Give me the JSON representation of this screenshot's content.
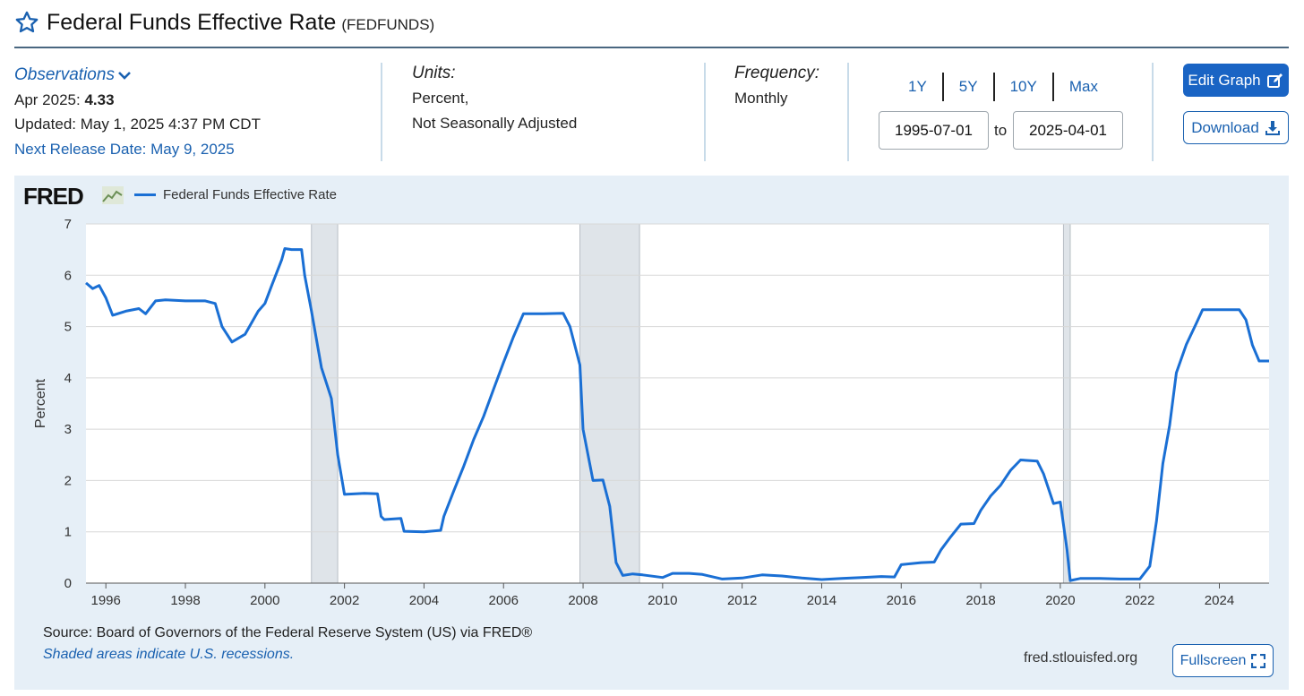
{
  "header": {
    "title": "Federal Funds Effective Rate",
    "series_id": "(FEDFUNDS)"
  },
  "observations": {
    "label": "Observations",
    "date_label": "Apr 2025:",
    "value": "4.33",
    "updated": "Updated: May 1, 2025 4:37 PM CDT",
    "next_release": "Next Release Date: May 9, 2025"
  },
  "units": {
    "label": "Units:",
    "line1": "Percent,",
    "line2": "Not Seasonally Adjusted"
  },
  "frequency": {
    "label": "Frequency:",
    "value": "Monthly"
  },
  "ranges": [
    "1Y",
    "5Y",
    "10Y",
    "Max"
  ],
  "dates": {
    "start": "1995-07-01",
    "to_label": "to",
    "end": "2025-04-01"
  },
  "buttons": {
    "edit": "Edit Graph",
    "download": "Download",
    "fullscreen": "Fullscreen"
  },
  "footer": {
    "source": "Source: Board of Governors of the Federal Reserve System (US) via FRED®",
    "shade_note": "Shaded areas indicate U.S. recessions.",
    "url": "fred.stlouisfed.org"
  },
  "colors": {
    "accent": "#1a64c4",
    "line": "#1a6fd4",
    "panel": "#e6eff7",
    "recession": "#dfe4e9"
  },
  "chart_data": {
    "type": "line",
    "title": "",
    "logo": "FRED",
    "ylabel": "Percent",
    "xlabel": "",
    "ylim": [
      0,
      7
    ],
    "xlim": [
      1995.5,
      2025.25
    ],
    "yticks": [
      0,
      1,
      2,
      3,
      4,
      5,
      6,
      7
    ],
    "xticks": [
      1996,
      1998,
      2000,
      2002,
      2004,
      2006,
      2008,
      2010,
      2012,
      2014,
      2016,
      2018,
      2020,
      2022,
      2024
    ],
    "grid": true,
    "recessions": [
      [
        2001.17,
        2001.83
      ],
      [
        2007.92,
        2009.42
      ],
      [
        2020.08,
        2020.25
      ]
    ],
    "series": [
      {
        "name": "Federal Funds Effective Rate",
        "points": [
          [
            1995.5,
            5.85
          ],
          [
            1995.67,
            5.74
          ],
          [
            1995.83,
            5.8
          ],
          [
            1996.0,
            5.56
          ],
          [
            1996.17,
            5.22
          ],
          [
            1996.5,
            5.3
          ],
          [
            1996.83,
            5.35
          ],
          [
            1997.0,
            5.25
          ],
          [
            1997.25,
            5.5
          ],
          [
            1997.5,
            5.52
          ],
          [
            1998.0,
            5.5
          ],
          [
            1998.5,
            5.5
          ],
          [
            1998.75,
            5.45
          ],
          [
            1998.92,
            5.0
          ],
          [
            1999.17,
            4.7
          ],
          [
            1999.5,
            4.85
          ],
          [
            1999.83,
            5.3
          ],
          [
            2000.0,
            5.45
          ],
          [
            2000.17,
            5.8
          ],
          [
            2000.42,
            6.3
          ],
          [
            2000.5,
            6.52
          ],
          [
            2000.67,
            6.5
          ],
          [
            2000.92,
            6.5
          ],
          [
            2001.0,
            6.0
          ],
          [
            2001.17,
            5.3
          ],
          [
            2001.42,
            4.2
          ],
          [
            2001.67,
            3.6
          ],
          [
            2001.83,
            2.5
          ],
          [
            2002.0,
            1.73
          ],
          [
            2002.5,
            1.75
          ],
          [
            2002.83,
            1.74
          ],
          [
            2002.92,
            1.3
          ],
          [
            2003.0,
            1.24
          ],
          [
            2003.42,
            1.26
          ],
          [
            2003.5,
            1.01
          ],
          [
            2004.0,
            1.0
          ],
          [
            2004.42,
            1.03
          ],
          [
            2004.5,
            1.3
          ],
          [
            2004.75,
            1.8
          ],
          [
            2005.0,
            2.28
          ],
          [
            2005.25,
            2.8
          ],
          [
            2005.5,
            3.25
          ],
          [
            2005.75,
            3.78
          ],
          [
            2006.0,
            4.3
          ],
          [
            2006.25,
            4.8
          ],
          [
            2006.5,
            5.25
          ],
          [
            2007.0,
            5.25
          ],
          [
            2007.5,
            5.26
          ],
          [
            2007.67,
            5.0
          ],
          [
            2007.92,
            4.25
          ],
          [
            2008.0,
            3.0
          ],
          [
            2008.25,
            2.0
          ],
          [
            2008.5,
            2.01
          ],
          [
            2008.67,
            1.5
          ],
          [
            2008.83,
            0.4
          ],
          [
            2009.0,
            0.15
          ],
          [
            2009.25,
            0.18
          ],
          [
            2009.5,
            0.16
          ],
          [
            2010.0,
            0.11
          ],
          [
            2010.25,
            0.19
          ],
          [
            2010.67,
            0.19
          ],
          [
            2011.0,
            0.17
          ],
          [
            2011.5,
            0.08
          ],
          [
            2012.0,
            0.1
          ],
          [
            2012.5,
            0.16
          ],
          [
            2013.0,
            0.14
          ],
          [
            2013.5,
            0.1
          ],
          [
            2014.0,
            0.07
          ],
          [
            2014.5,
            0.09
          ],
          [
            2015.0,
            0.11
          ],
          [
            2015.5,
            0.13
          ],
          [
            2015.83,
            0.12
          ],
          [
            2016.0,
            0.36
          ],
          [
            2016.5,
            0.4
          ],
          [
            2016.83,
            0.41
          ],
          [
            2017.0,
            0.65
          ],
          [
            2017.25,
            0.91
          ],
          [
            2017.5,
            1.15
          ],
          [
            2017.83,
            1.16
          ],
          [
            2018.0,
            1.42
          ],
          [
            2018.25,
            1.7
          ],
          [
            2018.5,
            1.91
          ],
          [
            2018.75,
            2.2
          ],
          [
            2019.0,
            2.4
          ],
          [
            2019.42,
            2.38
          ],
          [
            2019.58,
            2.13
          ],
          [
            2019.83,
            1.55
          ],
          [
            2020.0,
            1.58
          ],
          [
            2020.17,
            0.65
          ],
          [
            2020.25,
            0.05
          ],
          [
            2020.5,
            0.09
          ],
          [
            2021.0,
            0.09
          ],
          [
            2021.5,
            0.08
          ],
          [
            2022.0,
            0.08
          ],
          [
            2022.25,
            0.33
          ],
          [
            2022.42,
            1.21
          ],
          [
            2022.58,
            2.33
          ],
          [
            2022.75,
            3.08
          ],
          [
            2022.92,
            4.1
          ],
          [
            2023.17,
            4.65
          ],
          [
            2023.42,
            5.06
          ],
          [
            2023.58,
            5.33
          ],
          [
            2024.5,
            5.33
          ],
          [
            2024.67,
            5.13
          ],
          [
            2024.83,
            4.64
          ],
          [
            2025.0,
            4.33
          ],
          [
            2025.25,
            4.33
          ]
        ]
      }
    ]
  }
}
